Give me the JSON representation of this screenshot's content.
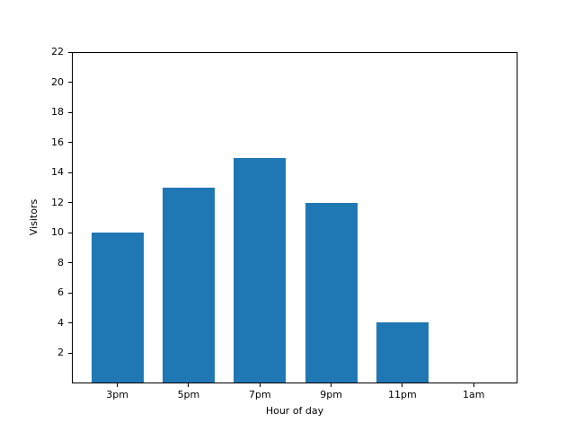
{
  "figure": {
    "background": "#ffffff",
    "axis_color": "#000000",
    "text_color": "#000000"
  },
  "chart_data": {
    "type": "bar",
    "title": "",
    "xlabel": "Hour of day",
    "ylabel": "Visitors",
    "categories": [
      "3pm",
      "5pm",
      "7pm",
      "9pm",
      "11pm",
      "1am"
    ],
    "values": [
      10,
      13,
      15,
      12,
      4,
      0
    ],
    "yticks": [
      2,
      4,
      6,
      8,
      10,
      12,
      14,
      16,
      18,
      20,
      22
    ],
    "ylim": [
      0,
      22
    ],
    "grid": false,
    "legend_position": "none",
    "bar_color": "#1f77b4"
  }
}
